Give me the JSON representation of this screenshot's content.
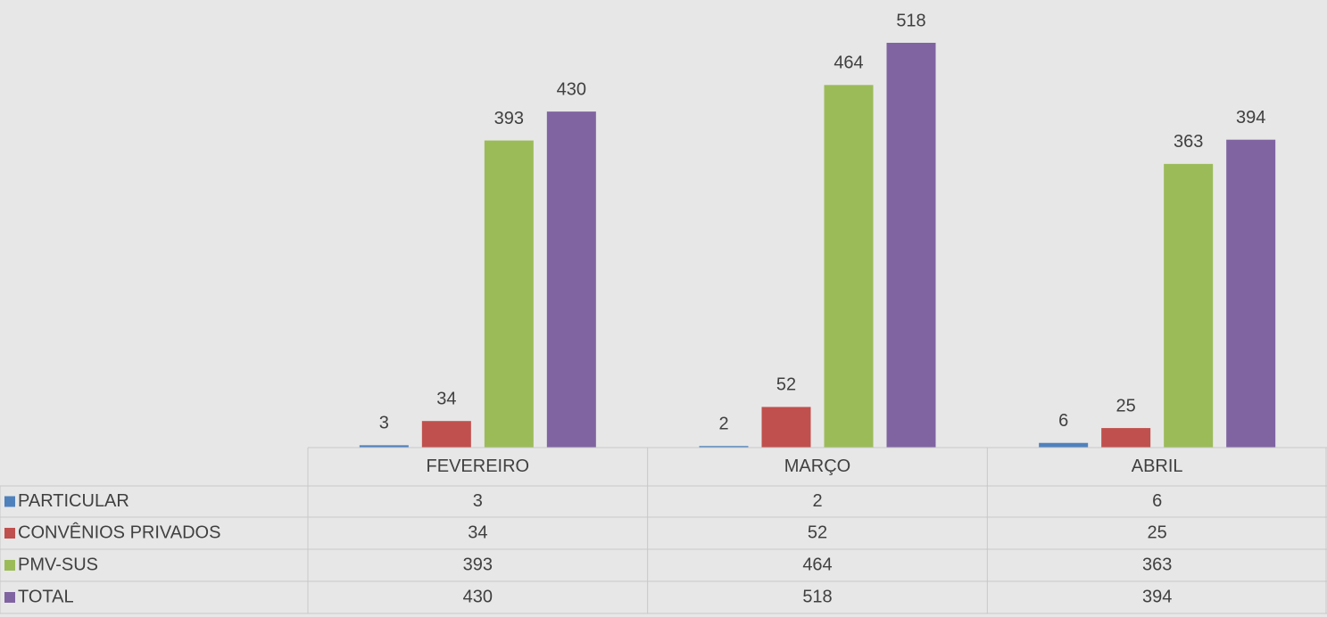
{
  "chart_data": {
    "type": "bar",
    "categories": [
      "FEVEREIRO",
      "MARÇO",
      "ABRIL"
    ],
    "series": [
      {
        "name": "PARTICULAR",
        "color": "#4f81bd",
        "values": [
          3,
          2,
          6
        ]
      },
      {
        "name": "CONVÊNIOS PRIVADOS",
        "color": "#c0504d",
        "values": [
          34,
          52,
          25
        ]
      },
      {
        "name": "PMV-SUS",
        "color": "#9bbb59",
        "values": [
          393,
          464,
          363
        ]
      },
      {
        "name": "TOTAL",
        "color": "#8064a2",
        "values": [
          430,
          518,
          394
        ]
      }
    ],
    "data_table": true
  }
}
